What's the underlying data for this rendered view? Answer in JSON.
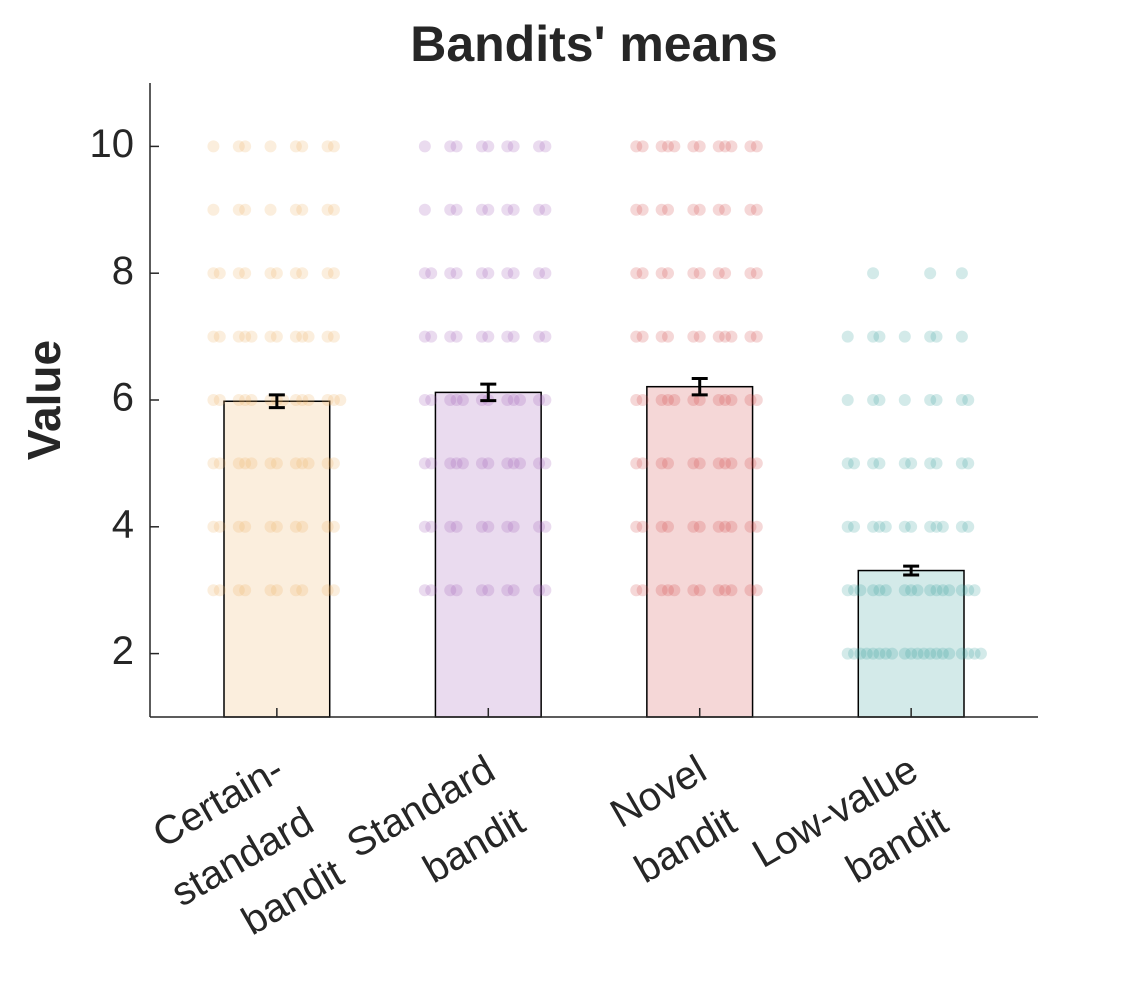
{
  "chart_data": {
    "type": "bar",
    "title": "Bandits' means",
    "ylabel": "Value",
    "categories": [
      "Certain-\nstandard\nbandit",
      "Standard\nbandit",
      "Novel\nbandit",
      "Low-value\nbandit"
    ],
    "values": [
      5.98,
      6.12,
      6.21,
      3.31
    ],
    "errors": [
      0.1,
      0.13,
      0.13,
      0.07
    ],
    "colors": [
      "#efb062",
      "#9f5db5",
      "#d0474a",
      "#36a09a"
    ],
    "points": [
      [
        3,
        3,
        3,
        3,
        3,
        3,
        3,
        3,
        3,
        3,
        4,
        4,
        4,
        4,
        4,
        4,
        4,
        4,
        4,
        4,
        5,
        5,
        5,
        5,
        5,
        5,
        5,
        5,
        5,
        5,
        5,
        5,
        6,
        6,
        6,
        6,
        6,
        6,
        6,
        6,
        6,
        6,
        6,
        6,
        6,
        6,
        7,
        7,
        7,
        7,
        7,
        7,
        7,
        7,
        7,
        7,
        7,
        7,
        8,
        8,
        8,
        8,
        8,
        8,
        8,
        8,
        8,
        8,
        9,
        9,
        9,
        9,
        9,
        9,
        9,
        9,
        10,
        10,
        10,
        10,
        10,
        10,
        10,
        10
      ],
      [
        3,
        3,
        3,
        3,
        3,
        3,
        3,
        3,
        3,
        3,
        4,
        4,
        4,
        4,
        4,
        4,
        4,
        4,
        4,
        4,
        5,
        5,
        5,
        5,
        5,
        5,
        5,
        5,
        5,
        5,
        5,
        5,
        6,
        6,
        6,
        6,
        6,
        6,
        6,
        6,
        6,
        6,
        6,
        6,
        7,
        7,
        7,
        7,
        7,
        7,
        7,
        7,
        7,
        7,
        8,
        8,
        8,
        8,
        8,
        8,
        8,
        8,
        8,
        8,
        9,
        9,
        9,
        9,
        9,
        9,
        9,
        9,
        9,
        10,
        10,
        10,
        10,
        10,
        10,
        10,
        10,
        10
      ],
      [
        3,
        3,
        3,
        3,
        3,
        3,
        3,
        3,
        3,
        3,
        3,
        3,
        4,
        4,
        4,
        4,
        4,
        4,
        4,
        4,
        4,
        4,
        4,
        5,
        5,
        5,
        5,
        5,
        5,
        5,
        5,
        5,
        5,
        5,
        6,
        6,
        6,
        6,
        6,
        6,
        6,
        6,
        6,
        6,
        6,
        6,
        7,
        7,
        7,
        7,
        7,
        7,
        7,
        7,
        7,
        7,
        7,
        8,
        8,
        8,
        8,
        8,
        8,
        8,
        8,
        8,
        8,
        9,
        9,
        9,
        9,
        9,
        9,
        9,
        9,
        9,
        9,
        10,
        10,
        10,
        10,
        10,
        10,
        10,
        10,
        10,
        10,
        10,
        10
      ],
      [
        2,
        2,
        2,
        2,
        2,
        2,
        2,
        2,
        2,
        2,
        2,
        2,
        2,
        2,
        2,
        2,
        2,
        2,
        2,
        2,
        3,
        3,
        3,
        3,
        3,
        3,
        3,
        3,
        3,
        3,
        3,
        3,
        3,
        3,
        3,
        3,
        4,
        4,
        4,
        4,
        4,
        4,
        4,
        4,
        4,
        4,
        4,
        4,
        5,
        5,
        5,
        5,
        5,
        5,
        5,
        5,
        5,
        5,
        6,
        6,
        6,
        6,
        6,
        6,
        6,
        6,
        7,
        7,
        7,
        7,
        7,
        7,
        7,
        8,
        8,
        8
      ]
    ],
    "ylim": [
      1,
      11
    ],
    "yticks": [
      2,
      4,
      6,
      8,
      10
    ],
    "xlim": [
      0.4,
      4.6
    ]
  }
}
